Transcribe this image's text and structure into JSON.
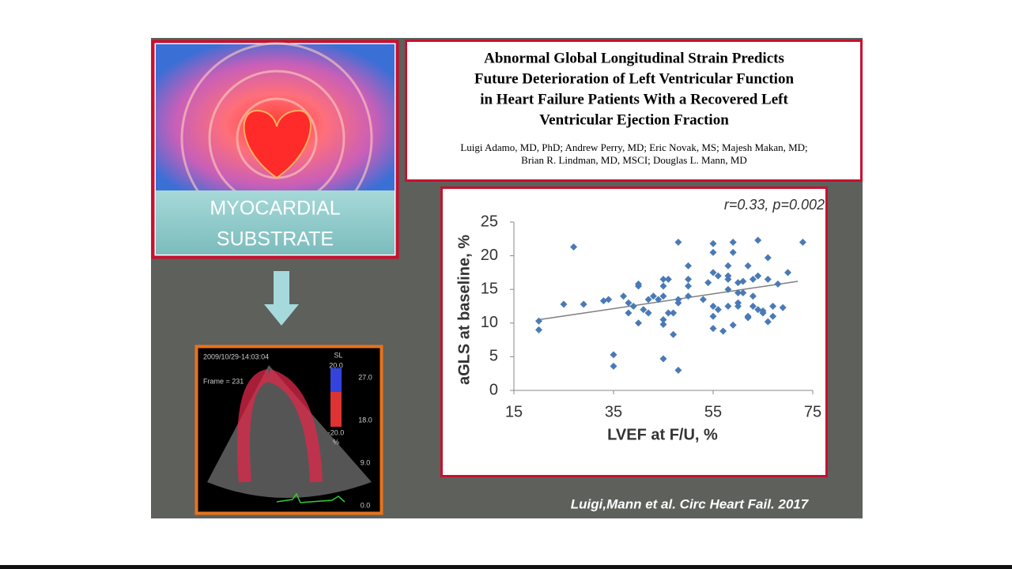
{
  "slide": {
    "left_label": [
      "MYOCARDIAL",
      "SUBSTRATE"
    ],
    "paper_title": [
      "Abnormal Global Longitudinal Strain Predicts",
      "Future Deterioration of Left Ventricular Function",
      "in Heart Failure Patients With a Recovered Left",
      "Ventricular Ejection Fraction"
    ],
    "authors": [
      "Luigi Adamo, MD, PhD; Andrew Perry, MD; Eric Novak, MS; Majesh Makan, MD;",
      "Brian R. Lindman, MD, MSCI; Douglas L. Mann, MD"
    ],
    "citation": "Luigi,Mann et al. Circ Heart Fail. 2017",
    "echo": {
      "timestamp": "2009/10/29-14:03:04",
      "frame": "Frame = 231",
      "scale_title": "SL",
      "scale_top": "20.0",
      "scale_bottom": "-20.0",
      "scale_unit": "%",
      "depth_labels": [
        "27.0",
        "18.0",
        "9.0",
        "0.0"
      ]
    }
  },
  "chart_data": {
    "type": "scatter",
    "annotation": "r=0.33, p=0.002",
    "xlabel": "LVEF at F/U, %",
    "ylabel": "aGLS at baseline, %",
    "xlim": [
      15,
      75
    ],
    "xticks": [
      15,
      35,
      55,
      75
    ],
    "ylim": [
      0,
      25
    ],
    "yticks": [
      0,
      5,
      10,
      15,
      20,
      25
    ],
    "color": "#4a7ab5",
    "trendline": {
      "x": [
        20,
        72
      ],
      "y": [
        10.5,
        16.2
      ],
      "color": "#7f7f7f"
    },
    "x": [
      20,
      20,
      27,
      25,
      29,
      33,
      34,
      35,
      35,
      37,
      38,
      38,
      39,
      40,
      40,
      40,
      41,
      42,
      42,
      43,
      44,
      45,
      45,
      45,
      45,
      45,
      45,
      46,
      46,
      47,
      47,
      48,
      48,
      48,
      48,
      50,
      50,
      50,
      50,
      53,
      54,
      55,
      55,
      55,
      55,
      55,
      55,
      56,
      56,
      57,
      58,
      58,
      58,
      58,
      58,
      59,
      59,
      59,
      60,
      60,
      60,
      60,
      61,
      61,
      62,
      62,
      62,
      63,
      63,
      63,
      64,
      64,
      64,
      65,
      65,
      66,
      66,
      66,
      67,
      67,
      68,
      69,
      70,
      73
    ],
    "y": [
      10.3,
      9,
      21.3,
      12.8,
      12.8,
      13.3,
      13.5,
      5.3,
      3.6,
      14,
      13,
      11.5,
      12.5,
      15.8,
      15.5,
      10,
      12,
      13.5,
      11.5,
      14,
      13.5,
      16.5,
      15.5,
      14,
      10.5,
      9.8,
      4.7,
      16.5,
      11.5,
      11.5,
      8.3,
      13.5,
      13,
      22,
      3,
      18.5,
      16.5,
      15.5,
      14,
      13.5,
      16,
      21.8,
      20.5,
      17.5,
      12.5,
      11,
      9.2,
      17,
      12,
      8.8,
      18.5,
      17,
      16.5,
      15,
      12.5,
      22,
      20.5,
      9.7,
      16,
      14.5,
      13,
      12.5,
      16.2,
      14.5,
      18.5,
      11,
      10.8,
      16.5,
      14,
      12.5,
      22.3,
      17,
      12,
      11.8,
      11.5,
      19.7,
      16.5,
      10.2,
      12.5,
      11,
      15.8,
      12.3,
      17.5,
      22
    ]
  }
}
